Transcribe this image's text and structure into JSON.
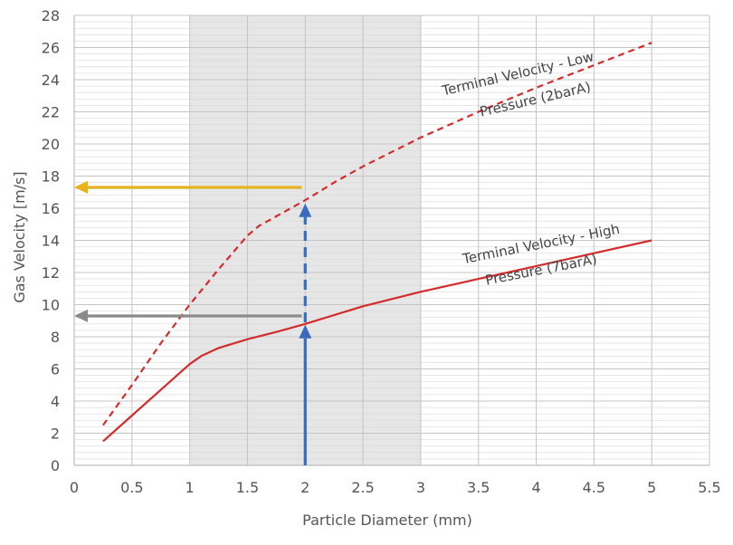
{
  "chart_data": {
    "type": "line",
    "xlabel": "Particle Diameter (mm)",
    "ylabel": "Gas Velocity [m/s]",
    "xlim": [
      0,
      5.5
    ],
    "ylim": [
      0,
      28
    ],
    "xticks": [
      0,
      0.5,
      1,
      1.5,
      2,
      2.5,
      3,
      3.5,
      4,
      4.5,
      5,
      5.5
    ],
    "xtick_labels": [
      "0",
      "0.5",
      "1",
      "1.5",
      "2",
      "2.5",
      "3",
      "3.5",
      "4",
      "4.5",
      "5",
      "5.5"
    ],
    "yticks": [
      0,
      2,
      4,
      6,
      8,
      10,
      12,
      14,
      16,
      18,
      20,
      22,
      24,
      26,
      28
    ],
    "ytick_labels": [
      "0",
      "2",
      "4",
      "6",
      "8",
      "10",
      "12",
      "14",
      "16",
      "18",
      "20",
      "22",
      "24",
      "26",
      "28"
    ],
    "grid": true,
    "shaded_region": {
      "x_from": 1,
      "x_to": 3,
      "color": "#e6e6e6"
    },
    "series": [
      {
        "id": "low",
        "style": "dashed",
        "color": "#d42c2c",
        "x": [
          0.25,
          0.5,
          0.75,
          1.0,
          1.25,
          1.5,
          1.6,
          1.75,
          2.0,
          2.25,
          2.5,
          3.0,
          3.5,
          4.0,
          4.5,
          5.0
        ],
        "y": [
          2.5,
          5.0,
          7.6,
          10.0,
          12.2,
          14.3,
          14.9,
          15.5,
          16.5,
          17.6,
          18.6,
          20.4,
          22.0,
          23.5,
          24.9,
          26.3
        ]
      },
      {
        "id": "high",
        "style": "solid",
        "color": "#d42c2c",
        "x": [
          0.25,
          0.5,
          0.75,
          1.0,
          1.1,
          1.25,
          1.5,
          1.75,
          2.0,
          2.5,
          3.0,
          3.5,
          4.0,
          4.5,
          5.0
        ],
        "y": [
          1.5,
          3.1,
          4.7,
          6.3,
          6.8,
          7.3,
          7.85,
          8.3,
          8.8,
          9.9,
          10.8,
          11.6,
          12.4,
          13.2,
          14.0
        ]
      }
    ],
    "annotations": [
      {
        "id": "low-label-line1",
        "text": "Terminal Velocity - Low",
        "x": 3.85,
        "y": 24.1,
        "rotate": -13
      },
      {
        "id": "low-label-line2",
        "text": "Pressure (2barA)",
        "x": 4.0,
        "y": 22.5,
        "rotate": -13
      },
      {
        "id": "high-label-line1",
        "text": "Terminal Velocity - High",
        "x": 4.05,
        "y": 13.5,
        "rotate": -11
      },
      {
        "id": "high-label-line2",
        "text": "Pressure (7barA)",
        "x": 4.05,
        "y": 11.9,
        "rotate": -11
      }
    ],
    "arrows": [
      {
        "id": "blue-solid-arrow",
        "color": "#3a6bbd",
        "style": "solid",
        "x1": 2.0,
        "y1": 0,
        "x2": 2.0,
        "y2": 8.75
      },
      {
        "id": "blue-dashed-arrow",
        "color": "#3a6bbd",
        "style": "dashed",
        "x1": 2.0,
        "y1": 8.9,
        "x2": 2.0,
        "y2": 16.3
      },
      {
        "id": "yellow-arrow",
        "color": "#e8b21a",
        "style": "solid",
        "x1": 1.97,
        "y1": 17.3,
        "x2": 0.0,
        "y2": 17.3
      },
      {
        "id": "gray-arrow",
        "color": "#8a8a8a",
        "style": "solid",
        "x1": 1.97,
        "y1": 9.3,
        "x2": 0.0,
        "y2": 9.3
      }
    ]
  }
}
